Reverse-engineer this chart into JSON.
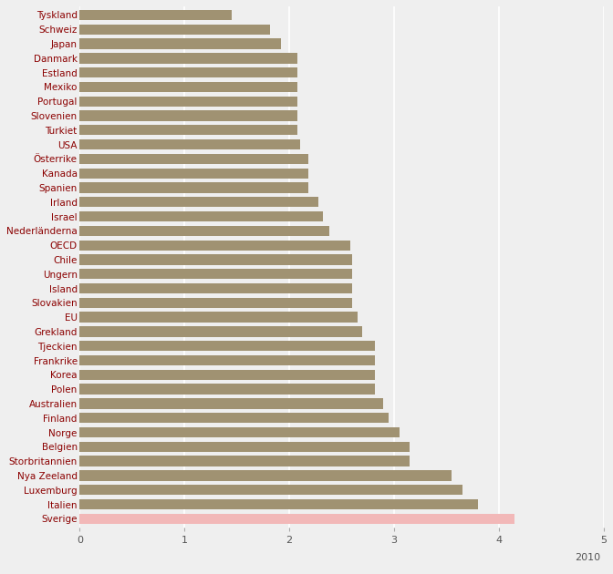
{
  "categories": [
    "Tyskland",
    "Schweiz",
    "Japan",
    "Danmark",
    "Estland",
    "Mexiko",
    "Portugal",
    "Slovenien",
    "Turkiet",
    "USA",
    "Österrike",
    "Kanada",
    "Spanien",
    "Irland",
    "Israel",
    "Nederländerna",
    "OECD",
    "Chile",
    "Ungern",
    "Island",
    "Slovakien",
    "EU",
    "Grekland",
    "Tjeckien",
    "Frankrike",
    "Korea",
    "Polen",
    "Australien",
    "Finland",
    "Norge",
    "Belgien",
    "Storbritannien",
    "Nya Zeeland",
    "Luxemburg",
    "Italien",
    "Sverige"
  ],
  "values": [
    1.45,
    1.82,
    1.92,
    2.08,
    2.08,
    2.08,
    2.08,
    2.08,
    2.08,
    2.1,
    2.18,
    2.18,
    2.18,
    2.28,
    2.32,
    2.38,
    2.58,
    2.6,
    2.6,
    2.6,
    2.6,
    2.65,
    2.7,
    2.82,
    2.82,
    2.82,
    2.82,
    2.9,
    2.95,
    3.05,
    3.15,
    3.15,
    3.55,
    3.65,
    3.8,
    4.15
  ],
  "bar_color_default": "#a09272",
  "bar_color_highlight": "#f2b8b8",
  "highlight_category": "Sverige",
  "xlim": [
    0,
    5
  ],
  "xticks": [
    0,
    1,
    2,
    3,
    4,
    5
  ],
  "year_label": "2010",
  "background_color": "#efefef",
  "grid_color": "#ffffff",
  "label_color": "#8b0000",
  "tick_color": "#555555",
  "bar_height": 0.72
}
